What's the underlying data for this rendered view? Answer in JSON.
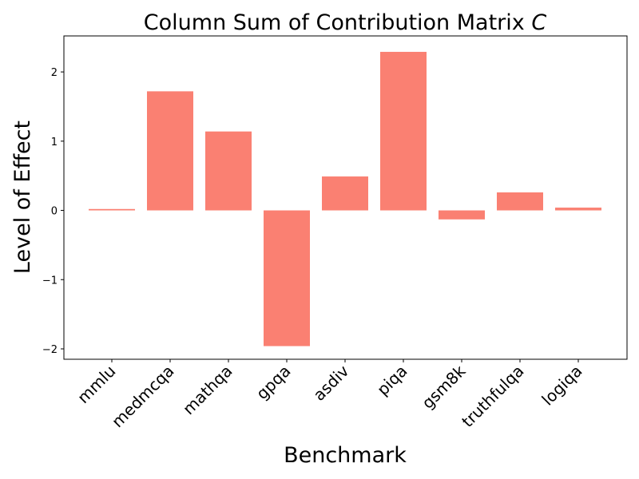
{
  "chart_data": {
    "type": "bar",
    "title_main": "Column Sum of Contribution Matrix ",
    "title_italic": "C",
    "xlabel": "Benchmark",
    "ylabel": "Level of Effect",
    "categories": [
      "mmlu",
      "medmcqa",
      "mathqa",
      "gpqa",
      "asdiv",
      "piqa",
      "gsm8k",
      "truthfulqa",
      "logiqa"
    ],
    "values": [
      0.02,
      1.72,
      1.14,
      -1.96,
      0.49,
      2.29,
      -0.13,
      0.26,
      0.04
    ],
    "ylim": [
      -2.15,
      2.52
    ],
    "yticks": [
      -2,
      -1,
      0,
      1,
      2
    ],
    "ytick_labels": [
      "−2",
      "−1",
      "0",
      "1",
      "2"
    ],
    "bar_color": "#fa8072",
    "grid": false,
    "legend": "none"
  }
}
